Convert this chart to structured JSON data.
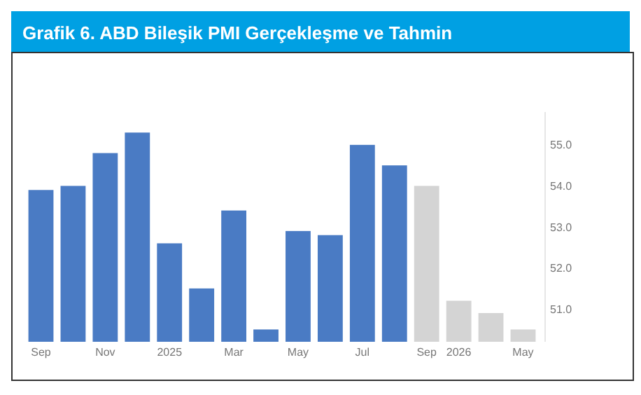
{
  "chart_data": {
    "type": "bar",
    "title": "Grafik 6. ABD Bileşik PMI Gerçekleşme ve Tahmin",
    "categories": [
      "Sep",
      null,
      "Nov",
      null,
      "2025",
      null,
      "Mar",
      null,
      "May",
      null,
      "Jul",
      null,
      "Sep",
      "2026",
      null,
      "May"
    ],
    "values": [
      53.9,
      54.0,
      54.8,
      55.3,
      52.6,
      51.5,
      53.4,
      50.5,
      52.9,
      52.8,
      55.0,
      54.5,
      54.0,
      51.2,
      50.9,
      50.5
    ],
    "colors": [
      "#4a7bc4",
      "#4a7bc4",
      "#4a7bc4",
      "#4a7bc4",
      "#4a7bc4",
      "#4a7bc4",
      "#4a7bc4",
      "#4a7bc4",
      "#4a7bc4",
      "#4a7bc4",
      "#4a7bc4",
      "#4a7bc4",
      "#d4d4d4",
      "#d4d4d4",
      "#d4d4d4",
      "#d4d4d4"
    ],
    "ylim": [
      50.2,
      55.8
    ],
    "yticks": [
      {
        "value": 51,
        "label": "51.0"
      },
      {
        "value": 52,
        "label": "52.0"
      },
      {
        "value": 53,
        "label": "53.0"
      },
      {
        "value": 54,
        "label": "54.0"
      },
      {
        "value": 55,
        "label": "55.0"
      }
    ],
    "grid": false
  }
}
